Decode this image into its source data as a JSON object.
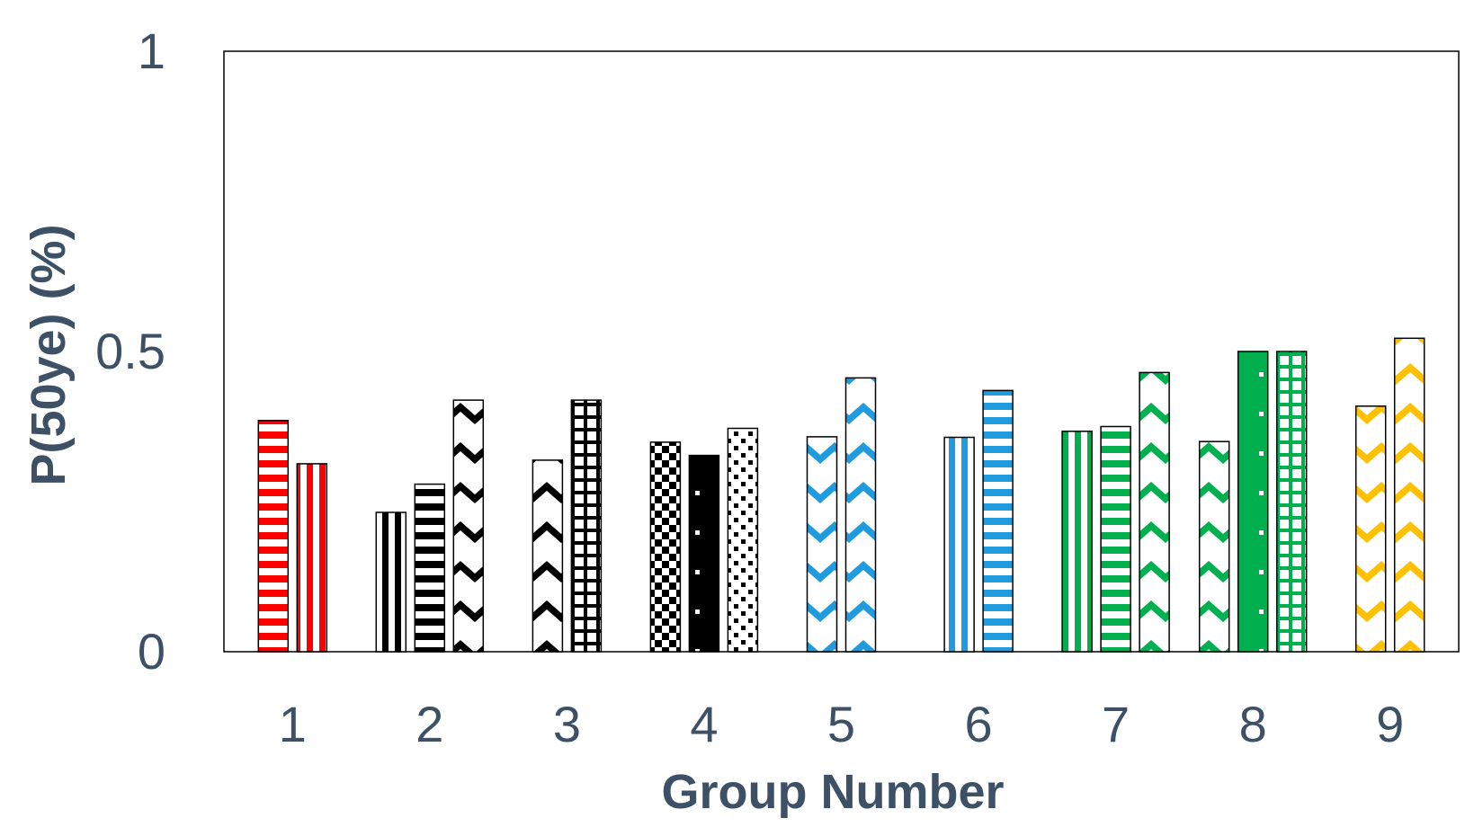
{
  "chart_data": {
    "type": "bar",
    "xlabel": "Group Number",
    "ylabel": "P(50ye) (%)",
    "ylim": [
      0,
      1
    ],
    "yticks": [
      "0",
      "0.5",
      "1"
    ],
    "grid": false,
    "legend": "none",
    "groups": [
      {
        "label": "1",
        "bars": [
          {
            "value": 0.385,
            "color": "#ff0000",
            "pattern": "horizontal-stripes"
          },
          {
            "value": 0.313,
            "color": "#ff0000",
            "pattern": "vertical-stripes"
          }
        ]
      },
      {
        "label": "2",
        "bars": [
          {
            "value": 0.232,
            "color": "#000000",
            "pattern": "vertical-stripes"
          },
          {
            "value": 0.279,
            "color": "#000000",
            "pattern": "horizontal-stripes"
          },
          {
            "value": 0.419,
            "color": "#000000",
            "pattern": "zigzag"
          }
        ]
      },
      {
        "label": "3",
        "bars": [
          {
            "value": 0.319,
            "color": "#000000",
            "pattern": "zigzag"
          },
          {
            "value": 0.419,
            "color": "#000000",
            "pattern": "grid"
          }
        ]
      },
      {
        "label": "4",
        "bars": [
          {
            "value": 0.349,
            "color": "#000000",
            "pattern": "checker"
          },
          {
            "value": 0.327,
            "color": "#000000",
            "pattern": "dots"
          },
          {
            "value": 0.372,
            "color": "#000000",
            "pattern": "sparse-checker"
          }
        ]
      },
      {
        "label": "5",
        "bars": [
          {
            "value": 0.358,
            "color": "#1f9bde",
            "pattern": "zigzag"
          },
          {
            "value": 0.456,
            "color": "#1f9bde",
            "pattern": "zigzag"
          }
        ]
      },
      {
        "label": "6",
        "bars": [
          {
            "value": 0.357,
            "color": "#1f9bde",
            "pattern": "vertical-stripes"
          },
          {
            "value": 0.435,
            "color": "#1f9bde",
            "pattern": "horizontal-stripes"
          }
        ]
      },
      {
        "label": "7",
        "bars": [
          {
            "value": 0.367,
            "color": "#00b04f",
            "pattern": "vertical-stripes"
          },
          {
            "value": 0.375,
            "color": "#00b04f",
            "pattern": "horizontal-stripes"
          },
          {
            "value": 0.465,
            "color": "#00b04f",
            "pattern": "zigzag"
          }
        ]
      },
      {
        "label": "8",
        "bars": [
          {
            "value": 0.35,
            "color": "#00b04f",
            "pattern": "zigzag"
          },
          {
            "value": 0.5,
            "color": "#00b04f",
            "pattern": "dots"
          },
          {
            "value": 0.5,
            "color": "#00b04f",
            "pattern": "grid"
          }
        ]
      },
      {
        "label": "9",
        "bars": [
          {
            "value": 0.409,
            "color": "#ffc000",
            "pattern": "zigzag"
          },
          {
            "value": 0.522,
            "color": "#ffc000",
            "pattern": "zigzag"
          }
        ]
      }
    ]
  }
}
